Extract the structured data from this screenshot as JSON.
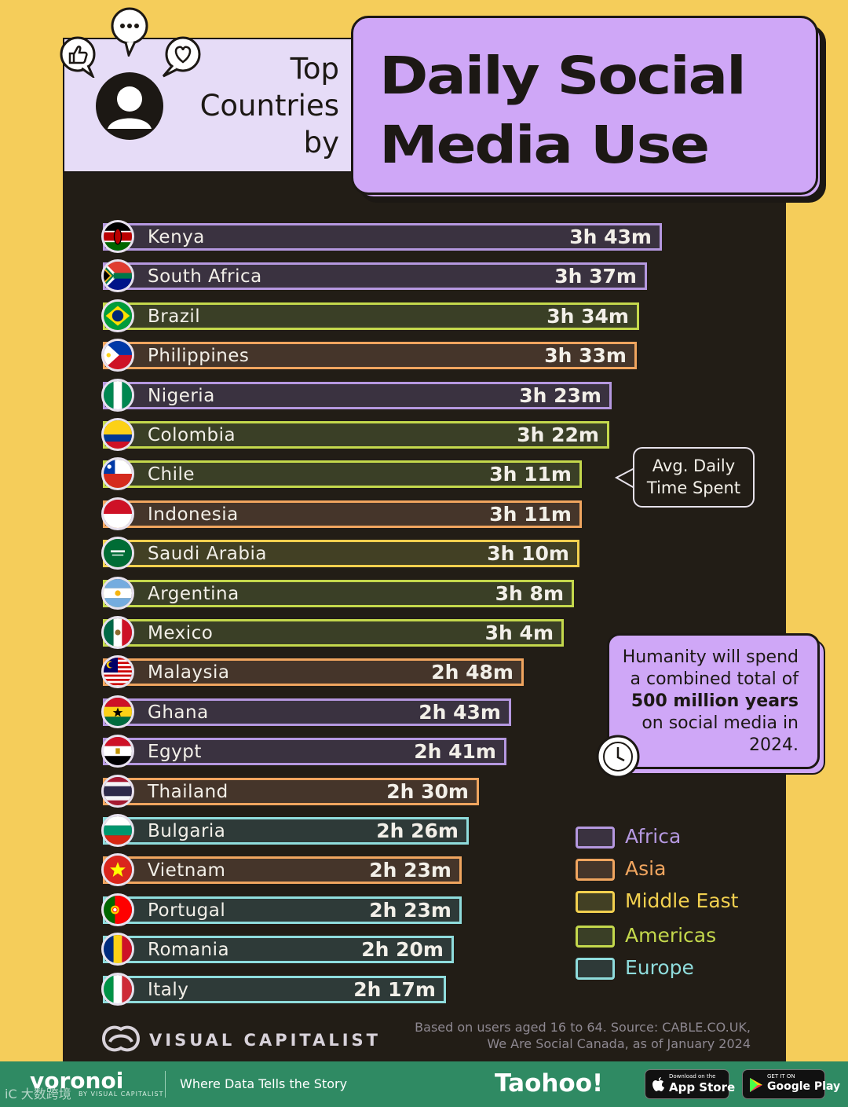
{
  "header": {
    "subtitle_lines": [
      "Top",
      "Countries",
      "by"
    ],
    "title_lines": [
      "Daily Social",
      "Media Use"
    ]
  },
  "colors": {
    "Africa": "#b598e0",
    "Asia": "#f0a55f",
    "Middle East": "#f2d04f",
    "Americas": "#c4d84c",
    "Europe": "#8fdcdc",
    "bar_fill": {
      "Africa": "#3a3240",
      "Asia": "#45352a",
      "Middle East": "#424024",
      "Americas": "#3a3f26",
      "Europe": "#2e3a38"
    }
  },
  "chart_data": {
    "type": "bar",
    "orientation": "horizontal",
    "title": "Top Countries by Daily Social Media Use",
    "value_label": "Avg. Daily Time Spent",
    "unit": "minutes",
    "categories": [
      "Kenya",
      "South Africa",
      "Brazil",
      "Philippines",
      "Nigeria",
      "Colombia",
      "Chile",
      "Indonesia",
      "Saudi Arabia",
      "Argentina",
      "Mexico",
      "Malaysia",
      "Ghana",
      "Egypt",
      "Thailand",
      "Bulgaria",
      "Vietnam",
      "Portugal",
      "Romania",
      "Italy"
    ],
    "values": [
      223,
      217,
      214,
      213,
      203,
      202,
      191,
      191,
      190,
      188,
      184,
      168,
      163,
      161,
      150,
      146,
      143,
      143,
      140,
      137
    ],
    "value_labels": [
      "3h 43m",
      "3h 37m",
      "3h 34m",
      "3h 33m",
      "3h 23m",
      "3h 22m",
      "3h 11m",
      "3h 11m",
      "3h 10m",
      "3h 8m",
      "3h 4m",
      "2h 48m",
      "2h 43m",
      "2h 41m",
      "2h 30m",
      "2h 26m",
      "2h 23m",
      "2h 23m",
      "2h 20m",
      "2h 17m"
    ],
    "regions": [
      "Africa",
      "Africa",
      "Americas",
      "Asia",
      "Africa",
      "Americas",
      "Americas",
      "Asia",
      "Middle East",
      "Americas",
      "Americas",
      "Asia",
      "Africa",
      "Africa",
      "Asia",
      "Europe",
      "Asia",
      "Europe",
      "Europe",
      "Europe"
    ],
    "legend": [
      "Africa",
      "Asia",
      "Middle East",
      "Americas",
      "Europe"
    ],
    "legend_position": "right"
  },
  "callouts": {
    "avg_label_lines": [
      "Avg. Daily",
      "Time Spent"
    ],
    "fact_parts": [
      "Humanity will spend a combined total of ",
      "500 million years",
      " on social media in 2024."
    ]
  },
  "brand": {
    "name": "VISUAL CAPITALIST",
    "source_lines": [
      "Based on users aged 16 to 64. Source: CABLE.CO.UK,",
      "We Are Social Canada, as of January 2024"
    ]
  },
  "footer": {
    "logo": "voronoi",
    "logo_sub": "BY VISUAL CAPITALIST",
    "tagline": "Where Data Tells the Story",
    "taohoo": "Taohoo!",
    "watermark": "iC 大数跨境",
    "app_store_small": "Download on the",
    "app_store_big": "App Store",
    "google_small": "GET IT ON",
    "google_big": "Google Play"
  }
}
